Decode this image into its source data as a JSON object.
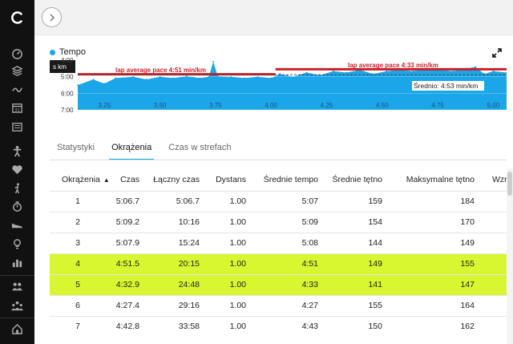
{
  "sidebar": {
    "nav_icons": [
      "dashboard-icon",
      "layers-icon",
      "activity-icon",
      "calendar-icon",
      "news-icon",
      "person-icon",
      "heart-icon",
      "golf-icon",
      "stopwatch-icon",
      "shoe-icon",
      "lightbulb-icon",
      "bars-icon",
      "people-icon",
      "group-icon",
      "home-icon"
    ],
    "calendar_day": "31"
  },
  "chart": {
    "legend_label": "Tempo",
    "color_series": "#1aa6e8",
    "color_lap_line": "#cc1f28",
    "left_box_label": "s km",
    "y_tick_labels": [
      "4:00",
      "5:00",
      "6:00",
      "7:00"
    ],
    "x_tick_labels": [
      "3.25",
      "3.50",
      "3.75",
      "4.00",
      "4.25",
      "4.50",
      "4.75",
      "5.00"
    ],
    "lap_label_1": "lap average pace 4:51 min/km",
    "lap_label_2": "lap average pace 4:33 min/km",
    "avg_label": "Średnio: 4:53 min/km"
  },
  "chart_data": {
    "type": "area",
    "title": "",
    "series": [
      {
        "name": "Tempo",
        "x": [
          3.13,
          3.2,
          3.25,
          3.3,
          3.38,
          3.44,
          3.5,
          3.56,
          3.62,
          3.68,
          3.72,
          3.74,
          3.76,
          3.82,
          3.88,
          3.94,
          4.0,
          4.04,
          4.1,
          4.16,
          4.22,
          4.28,
          4.34,
          4.4,
          4.46,
          4.52,
          4.58,
          4.64,
          4.7,
          4.76,
          4.82,
          4.88,
          4.92,
          4.96,
          5.0,
          5.06
        ],
        "y": [
          "5:30",
          "5:10",
          "5:25",
          "5:05",
          "5:00",
          "5:10",
          "5:00",
          "5:05",
          "4:58",
          "5:05",
          "5:00",
          "4:05",
          "4:58",
          "5:00",
          "5:05",
          "5:00",
          "5:05",
          "4:50",
          "5:00",
          "4:45",
          "4:55",
          "4:40",
          "4:45",
          "4:35",
          "4:50",
          "4:40",
          "4:35",
          "4:40",
          "4:30",
          "4:35",
          "4:40",
          "4:30",
          "4:25",
          "4:50",
          "4:40",
          "4:45"
        ]
      }
    ],
    "xlim": [
      3.13,
      5.06
    ],
    "ylim": [
      "4:00",
      "7:00"
    ],
    "y_inverted": true,
    "reference_lines": [
      {
        "label": "lap average pace 4:51 min/km",
        "value": "4:51",
        "x_range": [
          3.13,
          4.02
        ]
      },
      {
        "label": "lap average pace 4:33 min/km",
        "value": "4:33",
        "x_range": [
          4.02,
          5.06
        ]
      },
      {
        "label": "Średnio: 4:53 min/km",
        "value": "4:53"
      }
    ]
  },
  "tabs": [
    {
      "label": "Statystyki",
      "active": false
    },
    {
      "label": "Okrążenia",
      "active": true
    },
    {
      "label": "Czas w strefach",
      "active": false
    }
  ],
  "table": {
    "headers": [
      "Okrążenia",
      "Czas",
      "Łączny czas",
      "Dystans",
      "Średnie tempo",
      "Średnie tętno",
      "Maksymalne tętno",
      "Wzrost w"
    ],
    "sort_arrow": "▲",
    "rows": [
      {
        "cells": [
          "1",
          "5:06.7",
          "5:06.7",
          "1.00",
          "5:07",
          "159",
          "184",
          ""
        ],
        "highlight": false
      },
      {
        "cells": [
          "2",
          "5:09.2",
          "10:16",
          "1.00",
          "5:09",
          "154",
          "170",
          ""
        ],
        "highlight": false
      },
      {
        "cells": [
          "3",
          "5:07.9",
          "15:24",
          "1.00",
          "5:08",
          "144",
          "149",
          ""
        ],
        "highlight": false
      },
      {
        "cells": [
          "4",
          "4:51.5",
          "20:15",
          "1.00",
          "4:51",
          "149",
          "155",
          ""
        ],
        "highlight": true
      },
      {
        "cells": [
          "5",
          "4:32.9",
          "24:48",
          "1.00",
          "4:33",
          "141",
          "147",
          ""
        ],
        "highlight": true
      },
      {
        "cells": [
          "6",
          "4:27.4",
          "29:16",
          "1.00",
          "4:27",
          "155",
          "164",
          ""
        ],
        "highlight": false
      },
      {
        "cells": [
          "7",
          "4:42.8",
          "33:58",
          "1.00",
          "4:43",
          "150",
          "162",
          ""
        ],
        "highlight": false
      }
    ]
  }
}
